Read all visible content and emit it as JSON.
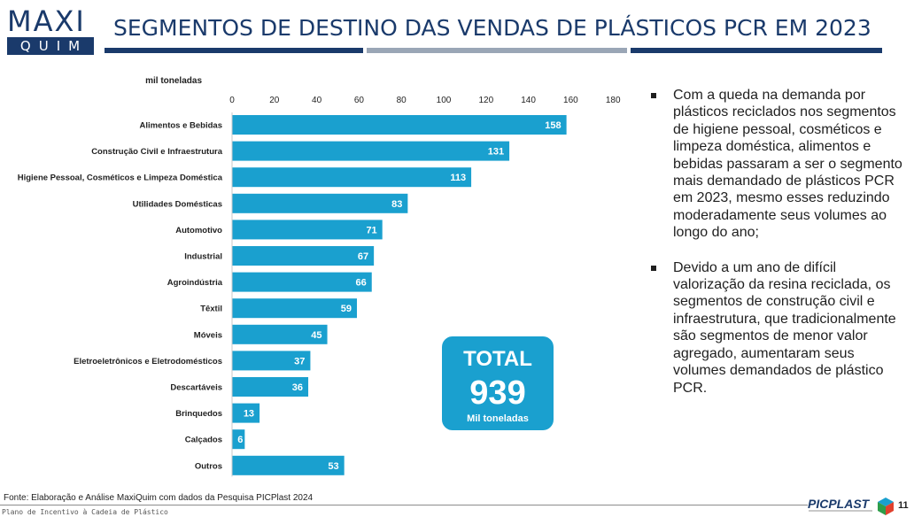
{
  "logo": {
    "top": "MAXI",
    "bottom": "QUIM"
  },
  "header": {
    "title": "SEGMENTOS DE DESTINO DAS VENDAS DE PLÁSTICOS PCR EM 2023"
  },
  "colors": {
    "bar": "#1aa0cf",
    "navy": "#1a3a6b",
    "grey_rule": "#9aa6b6"
  },
  "chart_data": {
    "type": "bar",
    "orientation": "horizontal",
    "unit_label": "mil toneladas",
    "xlim": [
      0,
      180
    ],
    "x_ticks": [
      0,
      20,
      40,
      60,
      80,
      100,
      120,
      140,
      160,
      180
    ],
    "gridlines": false,
    "categories": [
      "Alimentos e Bebidas",
      "Construção Civil e Infraestrutura",
      "Higiene Pessoal, Cosméticos e Limpeza Doméstica",
      "Utilidades Domésticas",
      "Automotivo",
      "Industrial",
      "Agroindústria",
      "Têxtil",
      "Móveis",
      "Eletroeletrônicos e Eletrodomésticos",
      "Descartáveis",
      "Brinquedos",
      "Calçados",
      "Outros"
    ],
    "values": [
      158,
      131,
      113,
      83,
      71,
      67,
      66,
      59,
      45,
      37,
      36,
      13,
      6,
      53
    ]
  },
  "total": {
    "label": "TOTAL",
    "value": "939",
    "unit": "Mil toneladas"
  },
  "bullets": [
    "Com a queda na demanda por plásticos reciclados nos segmentos de higiene pessoal, cosméticos e limpeza doméstica, alimentos e bebidas passaram a ser o segmento mais demandado de plásticos PCR em 2023, mesmo esses reduzindo moderadamente seus volumes ao longo do ano;",
    "Devido a um ano de difícil valorização da resina reciclada, os segmentos de construção civil e infraestrutura, que tradicionalmente são segmentos de menor valor agregado, aumentaram seus volumes demandados de plástico PCR."
  ],
  "footer": {
    "source": "Fonte: Elaboração e Análise MaxiQuim com dados da Pesquisa PICPlast 2024",
    "program": "Plano de Incentivo à Cadeia de Plástico",
    "brand": "PICPLAST",
    "page_number": "11"
  }
}
